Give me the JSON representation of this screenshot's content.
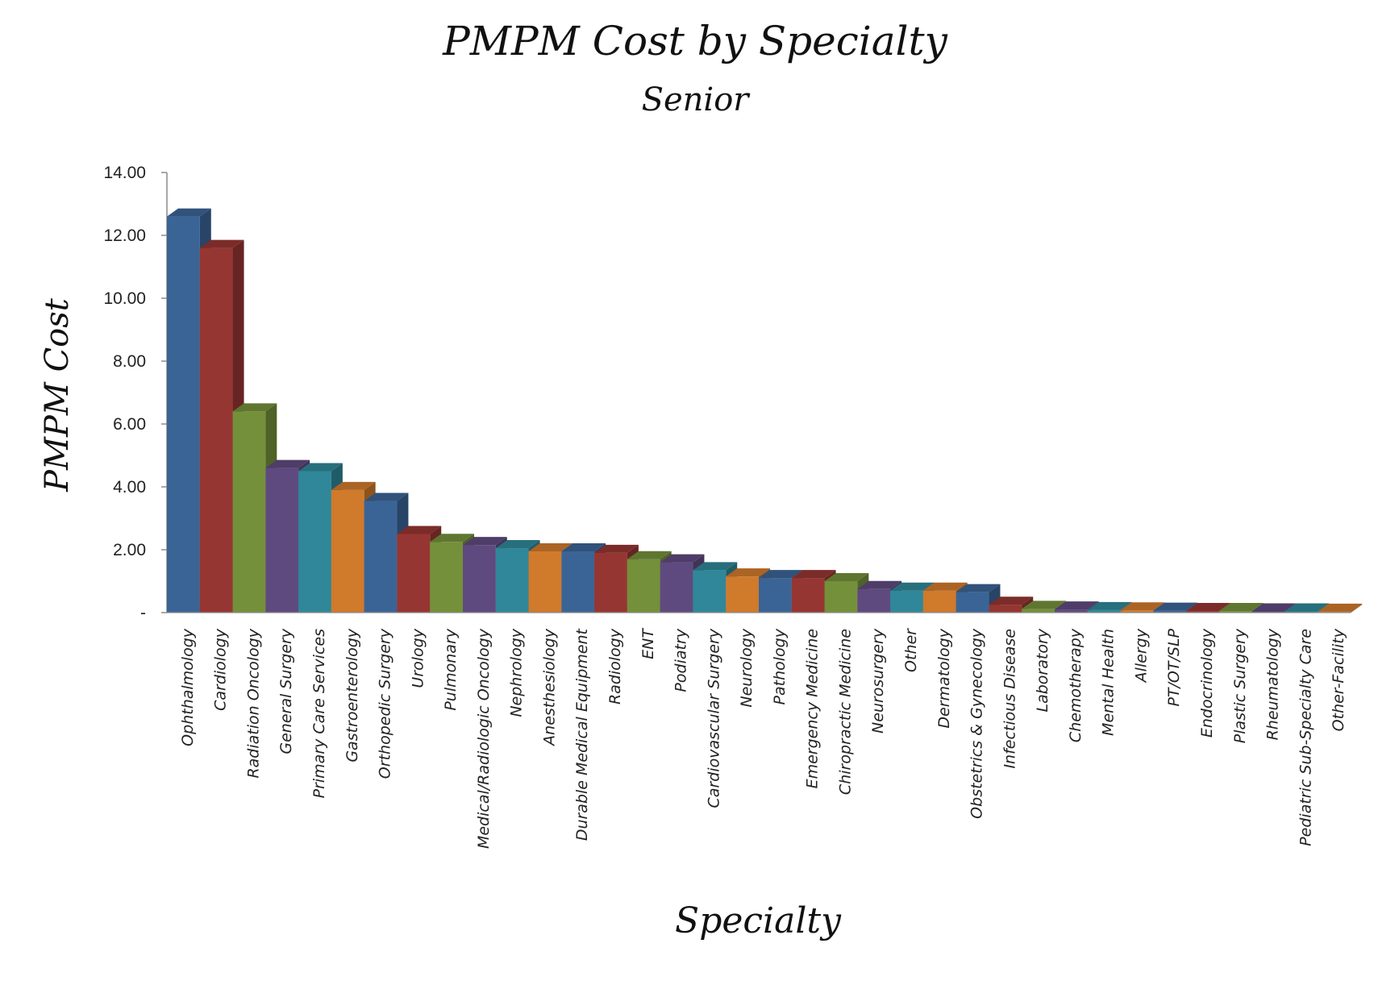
{
  "chart_data": {
    "type": "bar",
    "title": "PMPM Cost by Specialty",
    "subtitle": "Senior",
    "xlabel": "Specialty",
    "ylabel": "PMPM Cost",
    "ylim": [
      0,
      14
    ],
    "yticks": [
      0,
      2,
      4,
      6,
      8,
      10,
      12,
      14
    ],
    "ytick_labels": [
      "-",
      "2.00",
      "4.00",
      "6.00",
      "8.00",
      "10.00",
      "12.00",
      "14.00"
    ],
    "grid": false,
    "legend": "none",
    "style": "3d-column",
    "categories": [
      "Ophthalmology",
      "Cardiology",
      "Radiation Oncology",
      "General Surgery",
      "Primary Care Services",
      "Gastroenterology",
      "Orthopedic Surgery",
      "Urology",
      "Pulmonary",
      "Medical/Radiologic Oncology",
      "Nephrology",
      "Anesthesiology",
      "Durable Medical Equipment",
      "Radiology",
      "ENT",
      "Podiatry",
      "Cardiovascular Surgery",
      "Neurology",
      "Pathology",
      "Emergency Medicine",
      "Chiropractic Medicine",
      "Neurosurgery",
      "Other",
      "Dermatology",
      "Obstetrics & Gynecology",
      "Infectious Disease",
      "Laboratory",
      "Chemotherapy",
      "Mental Health",
      "Allergy",
      "PT/OT/SLP",
      "Endocrinology",
      "Plastic Surgery",
      "Rheumatology",
      "Pediatric Sub-Specialty Care",
      "Other-Facility"
    ],
    "values": [
      12.6,
      11.6,
      6.4,
      4.6,
      4.5,
      3.9,
      3.55,
      2.5,
      2.25,
      2.15,
      2.05,
      1.95,
      1.95,
      1.9,
      1.7,
      1.6,
      1.35,
      1.15,
      1.1,
      1.1,
      1.0,
      0.75,
      0.7,
      0.7,
      0.65,
      0.25,
      0.12,
      0.1,
      0.08,
      0.07,
      0.06,
      0.05,
      0.05,
      0.04,
      0.04,
      0.03
    ],
    "colors": [
      "#3b6496",
      "#963632",
      "#74903a",
      "#5f4a7f",
      "#2f8799",
      "#d07a2c"
    ]
  }
}
